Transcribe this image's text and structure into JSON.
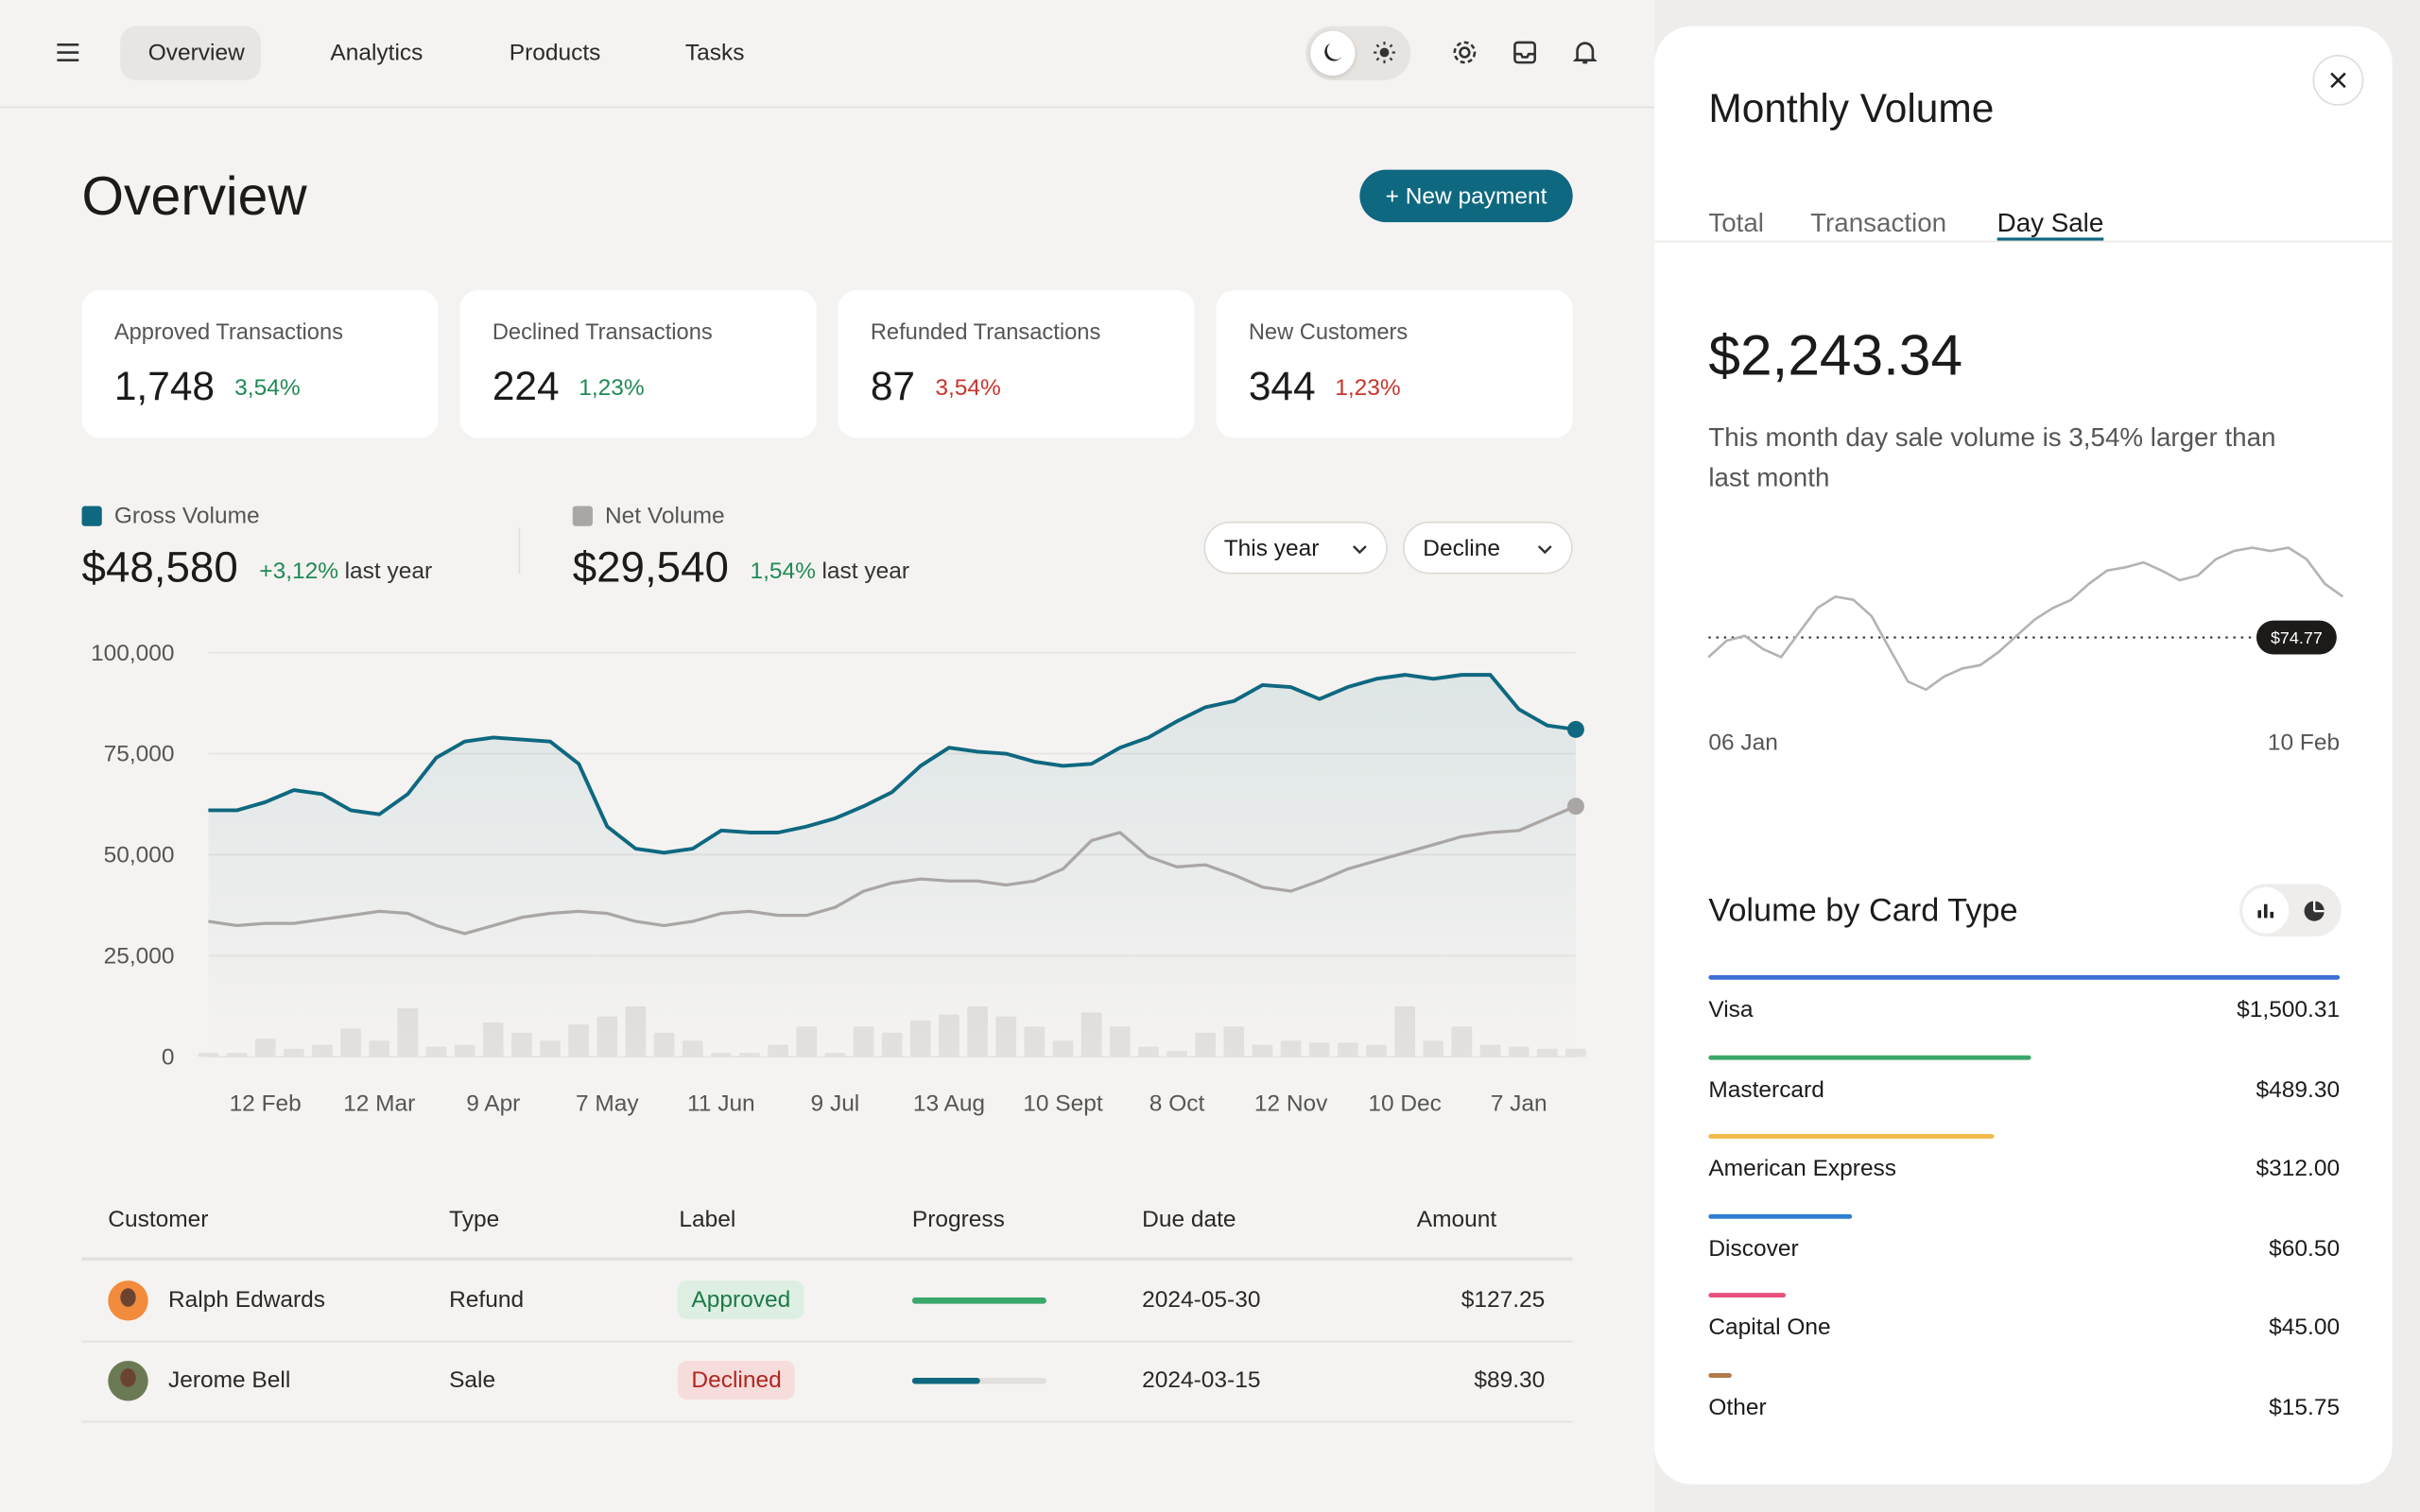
{
  "nav": {
    "items": [
      "Overview",
      "Analytics",
      "Products",
      "Tasks"
    ],
    "active": 0
  },
  "header": {
    "title": "Overview",
    "button": "+ New payment"
  },
  "stats": [
    {
      "label": "Approved Transactions",
      "value": "1,748",
      "change": "3,54%",
      "direction": "up"
    },
    {
      "label": "Declined Transactions",
      "value": "224",
      "change": "1,23%",
      "direction": "up"
    },
    {
      "label": "Refunded Transactions",
      "value": "87",
      "change": "3,54%",
      "direction": "down"
    },
    {
      "label": "New Customers",
      "value": "344",
      "change": "1,23%",
      "direction": "down"
    }
  ],
  "volume": {
    "legend": [
      {
        "name": "Gross Volume",
        "color": "#0e6880",
        "value": "$48,580",
        "change": "+3,12%",
        "suffix": "last year"
      },
      {
        "name": "Net Volume",
        "color": "#a9a6a4",
        "value": "$29,540",
        "change": "1,54%",
        "suffix": "last year"
      }
    ],
    "filters": [
      "This year",
      "Decline"
    ]
  },
  "chart_data": {
    "type": "line",
    "categories": [
      null,
      null,
      "12 Feb",
      null,
      null,
      null,
      "12 Mar",
      null,
      null,
      null,
      "9 Apr",
      null,
      null,
      null,
      "7 May",
      null,
      null,
      null,
      "11 Jun",
      null,
      null,
      null,
      "9 Jul",
      null,
      null,
      null,
      "13 Aug",
      null,
      null,
      null,
      "10 Sept",
      null,
      null,
      null,
      "8 Oct",
      null,
      null,
      null,
      "12 Nov",
      null,
      null,
      null,
      "10 Dec",
      null,
      null,
      null,
      "7 Jan",
      null,
      null
    ],
    "series": [
      {
        "name": "Gross Volume",
        "color": "#0e6880",
        "values": [
          61000,
          61000,
          63000,
          66000,
          65000,
          61000,
          60000,
          65000,
          74000,
          78000,
          79000,
          78500,
          78000,
          72500,
          57000,
          51500,
          50500,
          51500,
          56000,
          55500,
          55500,
          57000,
          59000,
          62000,
          65500,
          72000,
          76500,
          75500,
          75000,
          73000,
          72000,
          72500,
          76500,
          79000,
          83000,
          86500,
          88000,
          92000,
          91500,
          88500,
          91500,
          93500,
          94500,
          93500,
          94500,
          94500,
          86000,
          82000,
          81000
        ]
      },
      {
        "name": "Net Volume",
        "color": "#a9a6a4",
        "values": [
          33500,
          32500,
          33000,
          33000,
          34000,
          35000,
          36000,
          35500,
          32500,
          30500,
          32500,
          34500,
          35500,
          36000,
          35500,
          33500,
          32500,
          33500,
          35500,
          36000,
          35000,
          35000,
          37000,
          41000,
          43000,
          44000,
          43500,
          43500,
          42500,
          43500,
          46500,
          53500,
          55500,
          49500,
          47000,
          47500,
          45000,
          42000,
          41000,
          43500,
          46500,
          48500,
          50500,
          52500,
          54500,
          55500,
          56000,
          59000,
          62000
        ]
      }
    ],
    "bars": {
      "color": "#e3e0de",
      "values": [
        1000,
        1000,
        4500,
        2000,
        3000,
        7000,
        4000,
        12000,
        2500,
        3000,
        8500,
        6000,
        4000,
        8000,
        10000,
        12500,
        6000,
        4000,
        1000,
        1000,
        3000,
        7500,
        1000,
        7500,
        6000,
        9000,
        10500,
        12500,
        10000,
        7500,
        4000,
        11000,
        7500,
        2500,
        1500,
        6000,
        7500,
        3000,
        4000,
        3500,
        3500,
        3000,
        12500,
        4000,
        7500,
        3000,
        2500,
        2000,
        2000
      ]
    },
    "ylim": [
      0,
      100000
    ],
    "yticks": [
      0,
      {
        "value": 25000,
        "label": "25,000"
      },
      {
        "value": 50000,
        "label": "50,000"
      },
      {
        "value": 75000,
        "label": "75,000"
      },
      {
        "value": 100000,
        "label": "100,000"
      }
    ],
    "grid": true
  },
  "table": {
    "columns": [
      "Customer",
      "Type",
      "Label",
      "Progress",
      "Due date",
      "Amount"
    ],
    "rows": [
      {
        "customer": "Ralph Edwards",
        "type": "Refund",
        "label": "Approved",
        "progress": 100,
        "due": "2024-05-30",
        "amount": "$127.25"
      },
      {
        "customer": "Jerome Bell",
        "type": "Sale",
        "label": "Declined",
        "progress": 50,
        "due": "2024-03-15",
        "amount": "$89.30"
      }
    ]
  },
  "panel": {
    "title": "Monthly Volume",
    "tabs": [
      "Total",
      "Transaction",
      "Day Sale"
    ],
    "active_tab": 2,
    "amount": "$2,243.34",
    "description": "This month day sale volume is 3,54% larger than last month",
    "spark": {
      "type": "line",
      "color": "#b5b2b0",
      "categories": [
        "06 Jan",
        null,
        null,
        null,
        null,
        null,
        null,
        null,
        null,
        null,
        null,
        null,
        null,
        null,
        null,
        null,
        null,
        null,
        null,
        null,
        null,
        null,
        null,
        null,
        null,
        null,
        null,
        null,
        null,
        null,
        null,
        null,
        null,
        null,
        null,
        "10 Feb"
      ],
      "values": [
        68.77,
        73.77,
        75.27,
        71.27,
        68.77,
        76.27,
        83.77,
        87.27,
        86.27,
        81.27,
        71.27,
        61.27,
        58.77,
        62.77,
        65.27,
        66.27,
        70.27,
        75.27,
        80.27,
        83.77,
        86.27,
        91.27,
        95.27,
        96.27,
        97.77,
        95.27,
        92.27,
        93.77,
        98.77,
        101.27,
        102.27,
        101.27,
        102.27,
        98.77,
        91.27,
        87.27
      ],
      "reference": {
        "value": 74.77,
        "label": "$74.77"
      }
    },
    "card_title": "Volume by Card Type",
    "cards": [
      {
        "name": "Visa",
        "value": "$1,500.31",
        "color": "#3b6fd6"
      },
      {
        "name": "Mastercard",
        "value": "$489.30",
        "color": "#3aa86b"
      },
      {
        "name": "American Express",
        "value": "$312.00",
        "color": "#f2b84b"
      },
      {
        "name": "Discover",
        "value": "$60.50",
        "color": "#2f7fd0"
      },
      {
        "name": "Capital One",
        "value": "$45.00",
        "color": "#e8507a"
      },
      {
        "name": "Other",
        "value": "$15.75",
        "color": "#b07a4a"
      }
    ]
  }
}
